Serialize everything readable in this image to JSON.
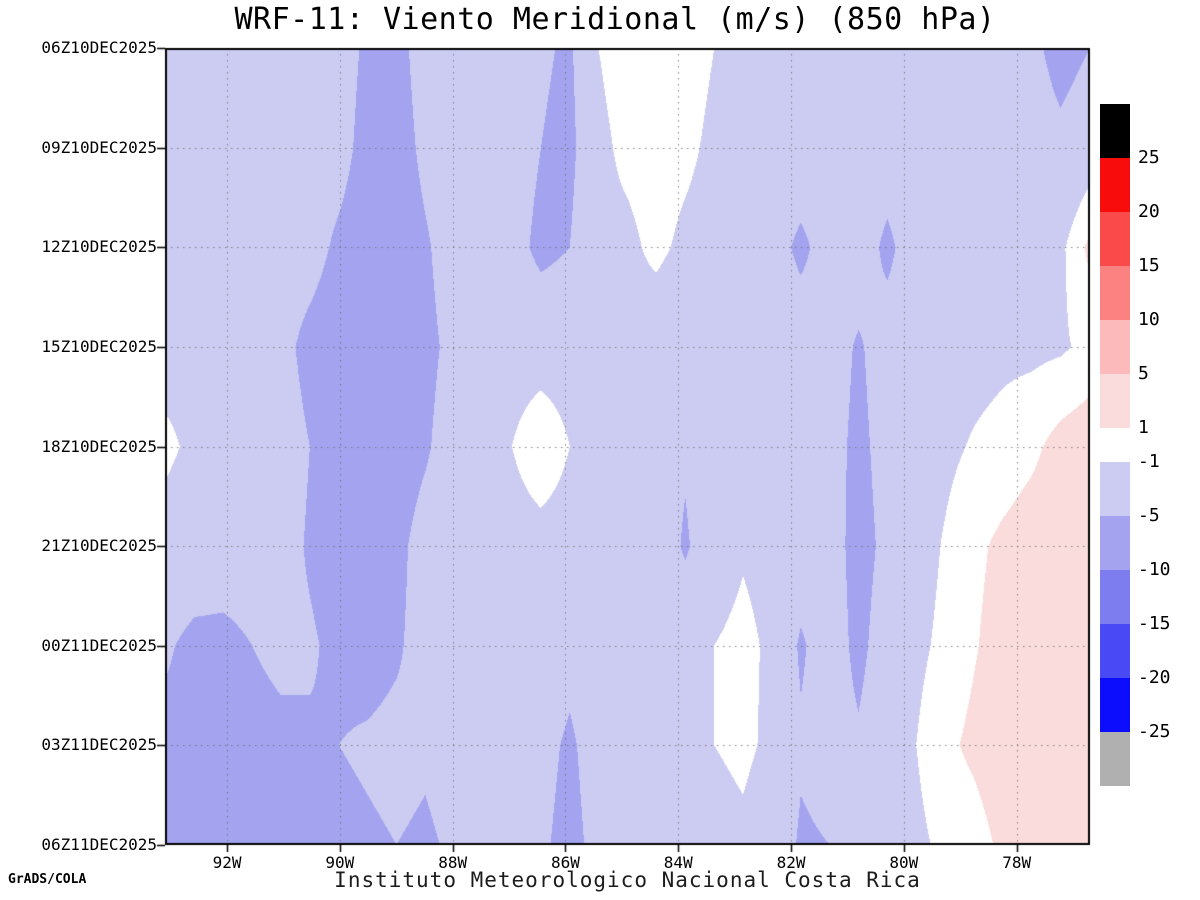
{
  "header": {
    "title": "WRF-11: Viento Meridional (m/s) (850 hPa)"
  },
  "footer": {
    "credit": "GrADS/COLA",
    "caption": "Instituto Meteorologico Nacional Costa Rica"
  },
  "chart_data": {
    "type": "heatmap",
    "title": "WRF-11: Viento Meridional (m/s) (850 hPa)",
    "subtitle": "",
    "xlabel": "",
    "ylabel": "",
    "units": "m/s",
    "pressure_level": "850 hPa",
    "x_tick_labels": [
      "92W",
      "90W",
      "88W",
      "86W",
      "84W",
      "82W",
      "80W",
      "78W"
    ],
    "x_tick_lons_w": [
      92,
      90,
      88,
      86,
      84,
      82,
      80,
      78
    ],
    "y_tick_labels": [
      "06Z10DEC2025",
      "09Z10DEC2025",
      "12Z10DEC2025",
      "15Z10DEC2025",
      "18Z10DEC2025",
      "21Z10DEC2025",
      "00Z11DEC2025",
      "03Z11DEC2025",
      "06Z11DEC2025"
    ],
    "lon_left_w": 93.1,
    "lon_right_w": 76.7,
    "grid_on": true,
    "legend_position": "right",
    "levels": [
      -25,
      -20,
      -15,
      -10,
      -5,
      -1,
      1,
      5,
      10,
      15,
      20,
      25
    ],
    "bin_colors": [
      "#b0b0b0",
      "#0d0dfd",
      "#4949f5",
      "#7d7df0",
      "#a3a3ef",
      "#ccccf2",
      "#ffffff",
      "#fbdcdc",
      "#fdbaba",
      "#fc8282",
      "#fb4a4a",
      "#f90c0c",
      "#000000"
    ],
    "colorbar": {
      "positive_block": {
        "segment_colors": [
          "#000000",
          "#f90c0c",
          "#fb4a4a",
          "#fc8282",
          "#fdbaba",
          "#fbdcdc"
        ],
        "boundary_labels": [
          "25",
          "20",
          "15",
          "10",
          "5",
          "1"
        ]
      },
      "negative_block": {
        "segment_colors": [
          "#ccccf2",
          "#a3a3ef",
          "#7d7df0",
          "#4949f5",
          "#0d0dfd",
          "#b0b0b0"
        ],
        "boundary_labels": [
          "-1",
          "-5",
          "-10",
          "-15",
          "-20",
          "-25"
        ]
      }
    },
    "grid": {
      "lons_w": [
        93.0,
        92.5,
        92.0,
        91.5,
        91.0,
        90.5,
        90.0,
        89.5,
        89.0,
        88.5,
        88.0,
        87.5,
        87.0,
        86.5,
        86.0,
        85.5,
        85.0,
        84.5,
        84.0,
        83.5,
        83.0,
        82.5,
        82.0,
        81.5,
        81.0,
        80.5,
        80.0,
        79.5,
        79.0,
        78.5,
        78.0,
        77.5,
        77.0
      ],
      "times": [
        "06Z10DEC2025",
        "09Z10DEC2025",
        "12Z10DEC2025",
        "15Z10DEC2025",
        "18Z10DEC2025",
        "21Z10DEC2025",
        "00Z11DEC2025",
        "03Z11DEC2025",
        "06Z11DEC2025"
      ],
      "values": [
        [
          -1.5,
          -2,
          -2,
          -2,
          -2,
          -2,
          -2.5,
          -6,
          -6.5,
          -3,
          -2.5,
          -2.5,
          -2.5,
          -4.5,
          -5.5,
          -1,
          0,
          0.3,
          0,
          -1,
          -2,
          -2,
          -2,
          -2,
          -2,
          -2,
          -2,
          -2,
          -2.5,
          -3,
          -4,
          -6.5,
          -5
        ],
        [
          -1.5,
          -2,
          -2,
          -2,
          -2,
          -2.2,
          -3,
          -7,
          -7,
          -4,
          -2.5,
          -2.5,
          -3,
          -5,
          -6,
          -1.5,
          -0.5,
          0,
          -0.5,
          -1.5,
          -2,
          -2,
          -2,
          -2,
          -2.2,
          -2.5,
          -2,
          -2,
          -2.3,
          -2.5,
          -3,
          -4,
          -2.5
        ],
        [
          -2,
          -2,
          -2,
          -2,
          -2.3,
          -3,
          -6,
          -8,
          -7.5,
          -5.5,
          -3,
          -2.5,
          -3.5,
          -6,
          -5,
          -1.5,
          -1.5,
          -0.5,
          -1.5,
          -2,
          -2.2,
          -3,
          -6,
          -3,
          -2.5,
          -6,
          -2.5,
          -2.2,
          -2.2,
          -2.3,
          -2.4,
          -1.5,
          1.5
        ],
        [
          -2,
          -2,
          -2.2,
          -2.5,
          -3.5,
          -6.5,
          -8,
          -8,
          -8,
          -6,
          -4,
          -2.5,
          -2,
          -2,
          -2,
          -1.2,
          -1.5,
          -2.5,
          -3,
          -1.5,
          -1.2,
          -2,
          -2.5,
          -3,
          -5.5,
          -3,
          -2.5,
          -2,
          -1.8,
          -1.5,
          -1.5,
          -1.3,
          -0.5
        ],
        [
          -0.5,
          -1.5,
          -2,
          -2.2,
          -2.8,
          -5,
          -7.5,
          -8,
          -7,
          -5.5,
          -3,
          -2.2,
          -1,
          0.3,
          -1,
          -2,
          -2.2,
          -2.5,
          -4.5,
          -2,
          -1.2,
          -2,
          -2.5,
          -3.5,
          -6,
          -3.5,
          -2.2,
          -1.5,
          -0.8,
          -0.3,
          0.5,
          1.8,
          2.5
        ],
        [
          -2,
          -2.5,
          -3,
          -3,
          -3.2,
          -5.5,
          -7,
          -7.5,
          -6,
          -3.5,
          -2.5,
          -2.2,
          -2,
          -1.8,
          -2,
          -2.2,
          -2.3,
          -2.5,
          -5.5,
          -2.5,
          -1.3,
          -2,
          -2.8,
          -3.2,
          -6.5,
          -4,
          -2,
          -0.8,
          0.5,
          1.5,
          2.2,
          2.5,
          2.5
        ],
        [
          -4.5,
          -6,
          -6,
          -5,
          -4,
          -4.5,
          -6,
          -6.5,
          -5.5,
          -3.5,
          -3,
          -2.5,
          -2.5,
          -2.5,
          -4,
          -2.5,
          -2.2,
          -2,
          -2,
          -1,
          -0.3,
          -1.5,
          -5.5,
          -3,
          -6,
          -3,
          -1.5,
          -0.5,
          0.8,
          2,
          2.5,
          3,
          2.5
        ],
        [
          -6,
          -6.5,
          -7,
          -6.5,
          -6,
          -5.5,
          -5,
          -4.5,
          -4,
          -4.5,
          -3.5,
          -3,
          -3,
          -4,
          -5.5,
          -3.5,
          -2.5,
          -3,
          -2,
          -1,
          -0.5,
          -1.5,
          -4.5,
          -3.5,
          -4.5,
          -2.5,
          -1,
          0.5,
          1.5,
          2.5,
          2.8,
          2.5,
          2
        ],
        [
          -6,
          -6.5,
          -7,
          -7,
          -6.5,
          -6,
          -6,
          -5.5,
          -5,
          -5.5,
          -4.5,
          -3.5,
          -3.5,
          -4.5,
          -6,
          -4,
          -3.5,
          -5,
          -3,
          -2,
          -1.5,
          -2.5,
          -5.5,
          -5,
          -3,
          -2,
          -1.5,
          -0.5,
          0,
          1.5,
          2.2,
          2.5,
          2.8
        ]
      ]
    }
  }
}
